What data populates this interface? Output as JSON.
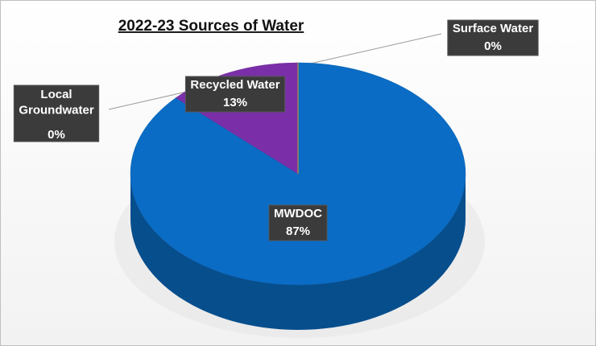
{
  "chart_data": {
    "type": "pie",
    "title": "2022-23 Sources of Water",
    "categories": [
      "MWDOC",
      "Recycled Water",
      "Surface Water",
      "Local Groundwater"
    ],
    "values": [
      87,
      13,
      0,
      0
    ],
    "value_labels": [
      "87%",
      "13%",
      "0%",
      "0%"
    ],
    "colors": [
      "#0a6cc4",
      "#7a2fa8",
      "#a5a5a5",
      "#ffc000"
    ]
  }
}
